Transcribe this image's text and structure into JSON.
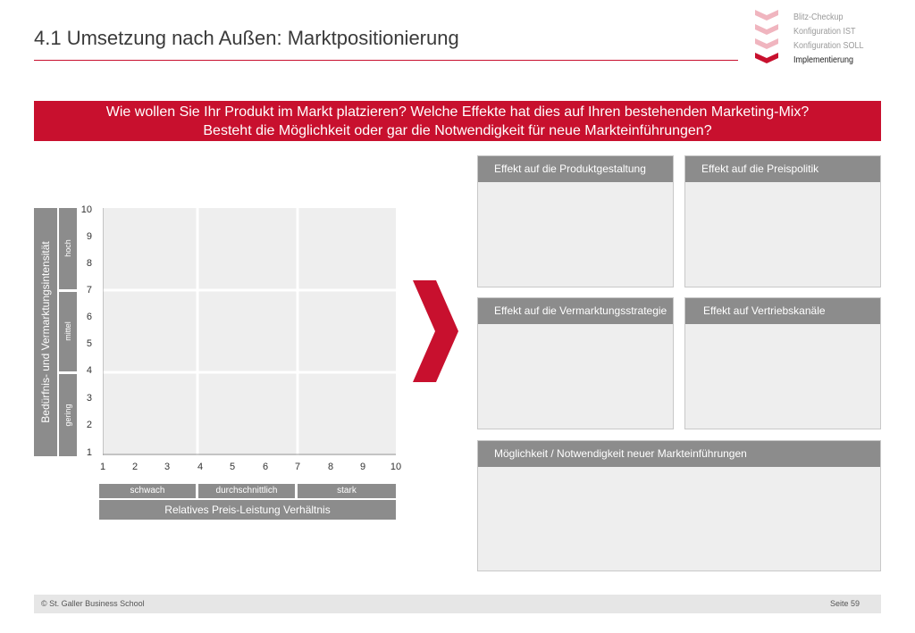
{
  "title": "4.1 Umsetzung nach Außen: Marktpositionierung",
  "nav": {
    "items": [
      {
        "label": "Blitz-Checkup",
        "active": false
      },
      {
        "label": "Konfiguration IST",
        "active": false
      },
      {
        "label": "Konfiguration SOLL",
        "active": false
      },
      {
        "label": "Implementierung",
        "active": true
      }
    ]
  },
  "banner": {
    "line1": "Wie wollen Sie Ihr Produkt im Markt platzieren? Welche Effekte hat dies auf Ihren bestehenden Marketing-Mix?",
    "line2": "Besteht die Möglichkeit oder gar die Notwendigkeit für neue Markteinführungen?"
  },
  "matrix": {
    "y_axis_title": "Bedürfnis- und Vermarktungsintensität",
    "y_levels": [
      "hoch",
      "mittel",
      "gering"
    ],
    "y_ticks": [
      "10",
      "9",
      "8",
      "7",
      "6",
      "5",
      "4",
      "3",
      "2",
      "1"
    ],
    "x_ticks": [
      "1",
      "2",
      "3",
      "4",
      "5",
      "6",
      "7",
      "8",
      "9",
      "10"
    ],
    "x_levels": [
      "schwach",
      "durchschnittlich",
      "stark"
    ],
    "x_axis_title": "Relatives Preis-Leistung Verhältnis"
  },
  "effects": {
    "produkt": "Effekt auf die Produktgestaltung",
    "preis": "Effekt auf die Preispolitik",
    "vermarktung": "Effekt auf die Vermarktungsstrategie",
    "vertrieb": "Effekt auf Vertriebskanäle",
    "neu": "Möglichkeit / Notwendigkeit neuer Markteinführungen"
  },
  "footer": {
    "copyright": "© St. Galler Business School",
    "page": "Seite 59"
  },
  "colors": {
    "accent": "#c8102e",
    "header_gray": "#8c8c8c",
    "box_fill": "#eeeeee"
  }
}
